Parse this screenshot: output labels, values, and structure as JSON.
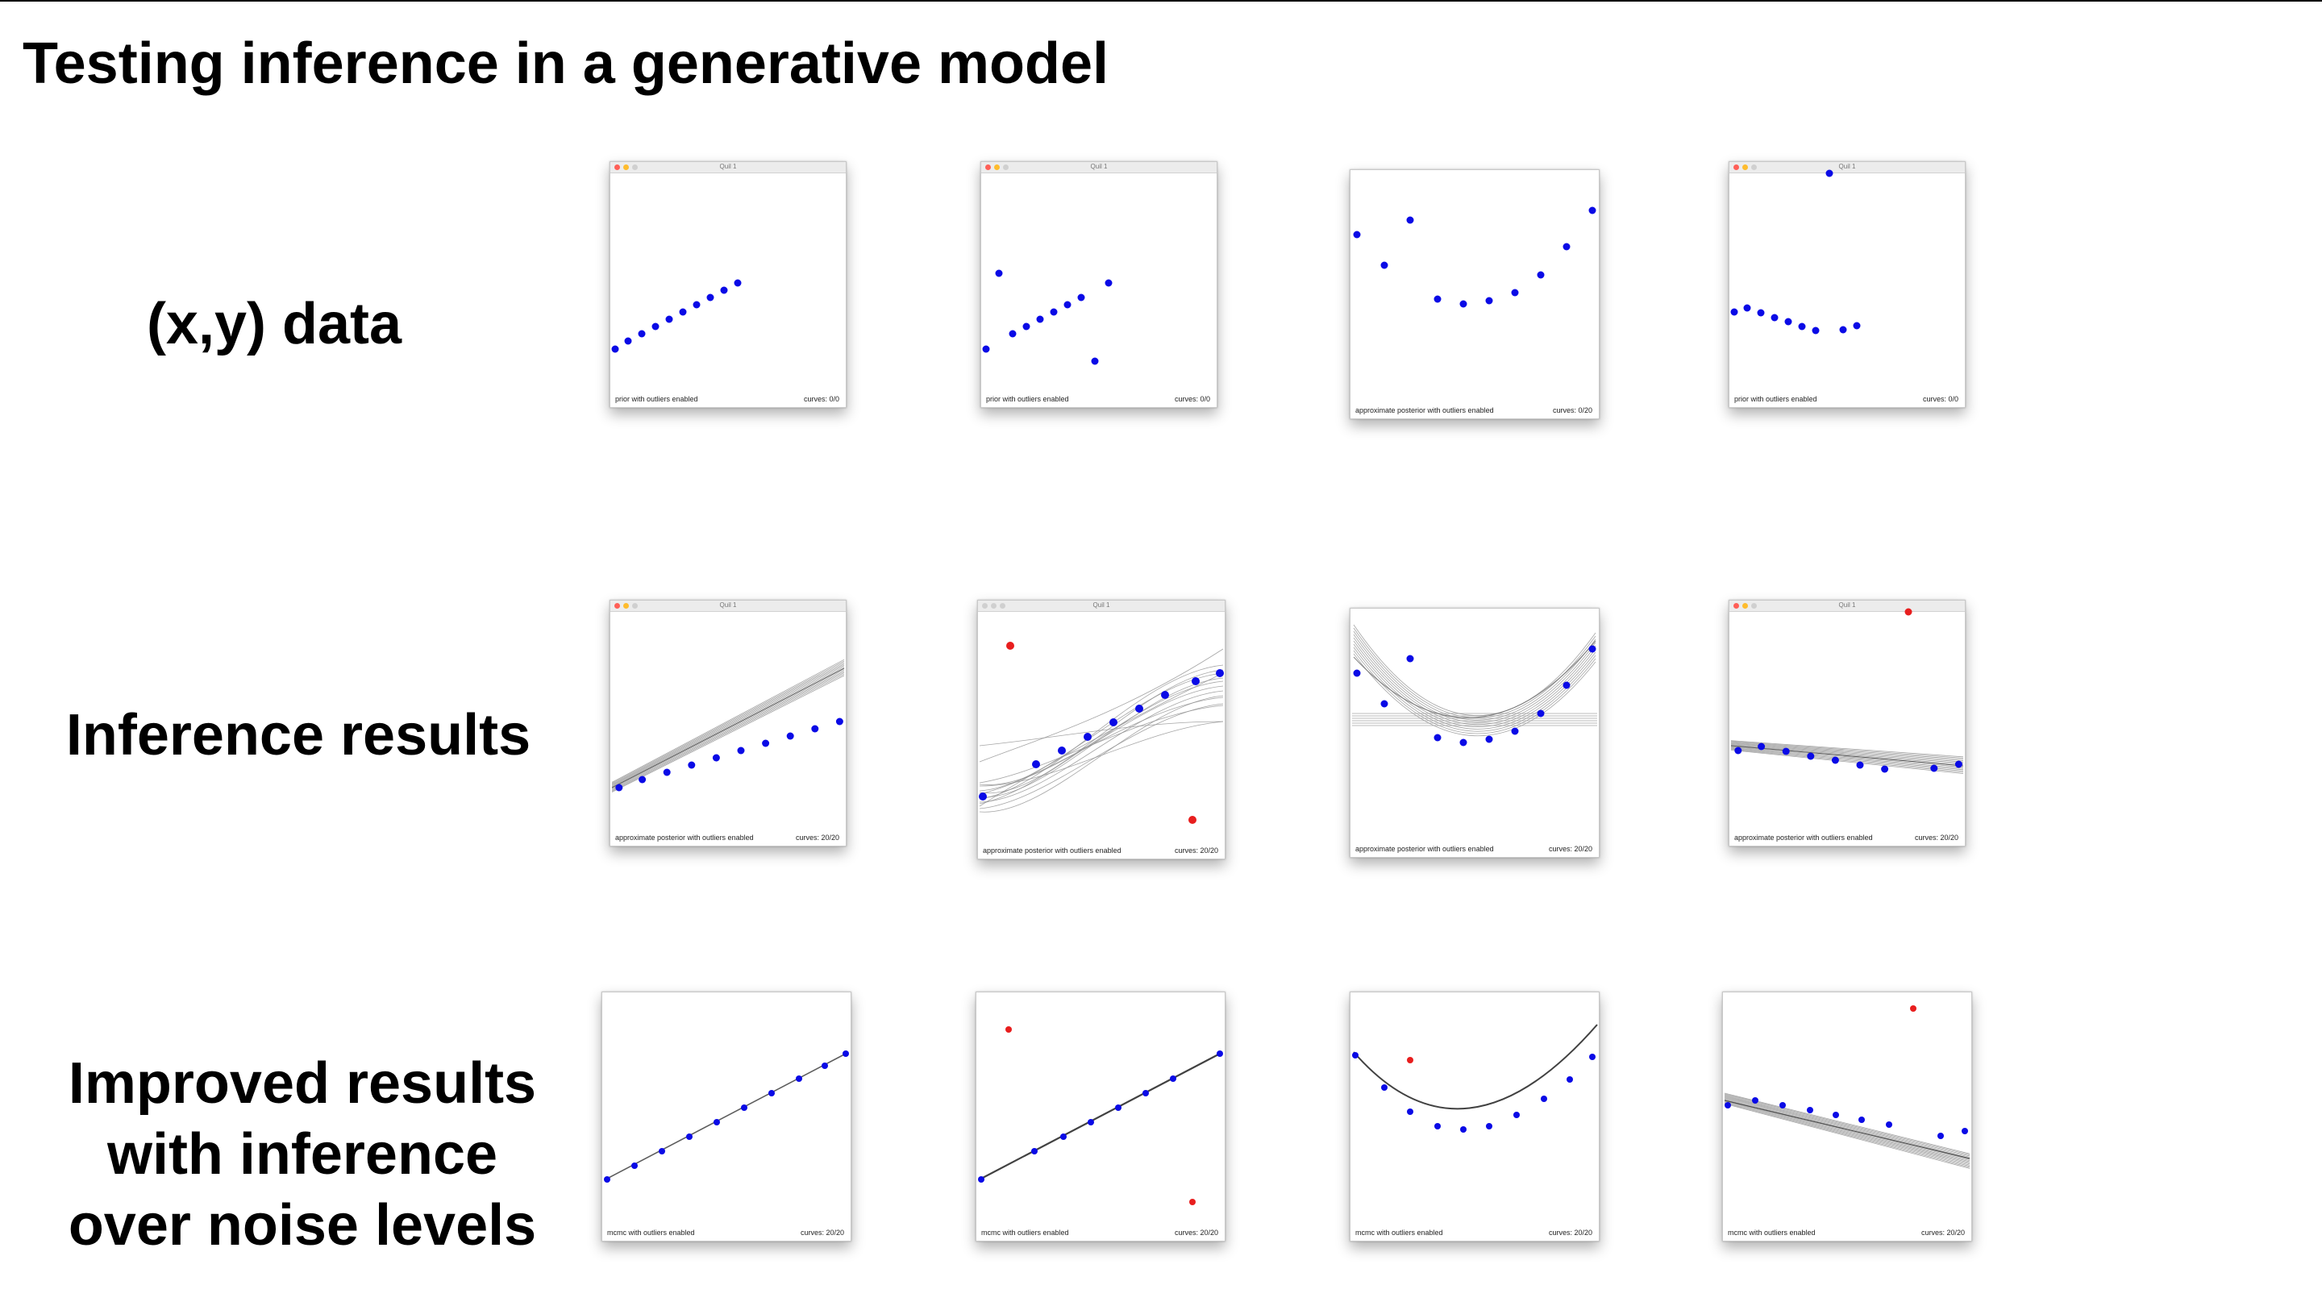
{
  "title": "Testing inference in a generative model",
  "row_labels": {
    "data": "(x,y) data",
    "inference": "Inference results",
    "improved": [
      "Improved results",
      "with inference",
      "over noise levels"
    ]
  },
  "window_title": "Quil 1",
  "colors": {
    "inlier": "#0a0ae6",
    "outlier": "#e81e1e",
    "fit_curve": "#8f8f8f",
    "mean_curve": "#000000",
    "close_dot": "#ff5f57",
    "min_dot": "#febc2e",
    "zoom_dot": "#d0d0d0"
  },
  "panels": [
    {
      "label": "prior with outliers enabled",
      "curves": "curves: 0/0"
    },
    {
      "label": "prior with outliers enabled",
      "curves": "curves: 0/0"
    },
    {
      "label": "approximate posterior with outliers enabled",
      "curves": "curves: 0/20"
    },
    {
      "label": "prior with outliers enabled",
      "curves": "curves: 0/0"
    },
    {
      "label": "approximate posterior with outliers enabled",
      "curves": "curves: 20/20"
    },
    {
      "label": "approximate posterior with outliers enabled",
      "curves": "curves: 20/20"
    },
    {
      "label": "approximate posterior with outliers enabled",
      "curves": "curves: 20/20"
    },
    {
      "label": "approximate posterior with outliers enabled",
      "curves": "curves: 20/20"
    },
    {
      "label": "mcmc with outliers enabled",
      "curves": "curves: 20/20"
    },
    {
      "label": "mcmc with outliers enabled",
      "curves": "curves: 20/20"
    },
    {
      "label": "mcmc with outliers enabled",
      "curves": "curves: 20/20"
    },
    {
      "label": "mcmc with outliers enabled",
      "curves": "curves: 20/20"
    }
  ]
}
